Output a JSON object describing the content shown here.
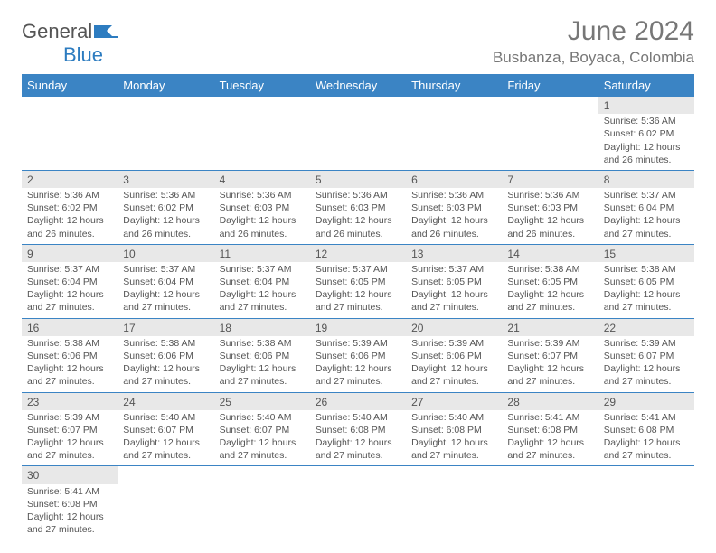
{
  "brand": {
    "part1": "General",
    "part2": "Blue"
  },
  "title": "June 2024",
  "location": "Busbanza, Boyaca, Colombia",
  "colors": {
    "header_bg": "#3b84c4",
    "header_text": "#ffffff",
    "daynum_bg": "#e8e8e8",
    "cell_border": "#3b84c4",
    "text": "#555555",
    "title_text": "#777777"
  },
  "day_headers": [
    "Sunday",
    "Monday",
    "Tuesday",
    "Wednesday",
    "Thursday",
    "Friday",
    "Saturday"
  ],
  "weeks": [
    [
      null,
      null,
      null,
      null,
      null,
      null,
      {
        "n": "1",
        "sr": "Sunrise: 5:36 AM",
        "ss": "Sunset: 6:02 PM",
        "d1": "Daylight: 12 hours",
        "d2": "and 26 minutes."
      }
    ],
    [
      {
        "n": "2",
        "sr": "Sunrise: 5:36 AM",
        "ss": "Sunset: 6:02 PM",
        "d1": "Daylight: 12 hours",
        "d2": "and 26 minutes."
      },
      {
        "n": "3",
        "sr": "Sunrise: 5:36 AM",
        "ss": "Sunset: 6:02 PM",
        "d1": "Daylight: 12 hours",
        "d2": "and 26 minutes."
      },
      {
        "n": "4",
        "sr": "Sunrise: 5:36 AM",
        "ss": "Sunset: 6:03 PM",
        "d1": "Daylight: 12 hours",
        "d2": "and 26 minutes."
      },
      {
        "n": "5",
        "sr": "Sunrise: 5:36 AM",
        "ss": "Sunset: 6:03 PM",
        "d1": "Daylight: 12 hours",
        "d2": "and 26 minutes."
      },
      {
        "n": "6",
        "sr": "Sunrise: 5:36 AM",
        "ss": "Sunset: 6:03 PM",
        "d1": "Daylight: 12 hours",
        "d2": "and 26 minutes."
      },
      {
        "n": "7",
        "sr": "Sunrise: 5:36 AM",
        "ss": "Sunset: 6:03 PM",
        "d1": "Daylight: 12 hours",
        "d2": "and 26 minutes."
      },
      {
        "n": "8",
        "sr": "Sunrise: 5:37 AM",
        "ss": "Sunset: 6:04 PM",
        "d1": "Daylight: 12 hours",
        "d2": "and 27 minutes."
      }
    ],
    [
      {
        "n": "9",
        "sr": "Sunrise: 5:37 AM",
        "ss": "Sunset: 6:04 PM",
        "d1": "Daylight: 12 hours",
        "d2": "and 27 minutes."
      },
      {
        "n": "10",
        "sr": "Sunrise: 5:37 AM",
        "ss": "Sunset: 6:04 PM",
        "d1": "Daylight: 12 hours",
        "d2": "and 27 minutes."
      },
      {
        "n": "11",
        "sr": "Sunrise: 5:37 AM",
        "ss": "Sunset: 6:04 PM",
        "d1": "Daylight: 12 hours",
        "d2": "and 27 minutes."
      },
      {
        "n": "12",
        "sr": "Sunrise: 5:37 AM",
        "ss": "Sunset: 6:05 PM",
        "d1": "Daylight: 12 hours",
        "d2": "and 27 minutes."
      },
      {
        "n": "13",
        "sr": "Sunrise: 5:37 AM",
        "ss": "Sunset: 6:05 PM",
        "d1": "Daylight: 12 hours",
        "d2": "and 27 minutes."
      },
      {
        "n": "14",
        "sr": "Sunrise: 5:38 AM",
        "ss": "Sunset: 6:05 PM",
        "d1": "Daylight: 12 hours",
        "d2": "and 27 minutes."
      },
      {
        "n": "15",
        "sr": "Sunrise: 5:38 AM",
        "ss": "Sunset: 6:05 PM",
        "d1": "Daylight: 12 hours",
        "d2": "and 27 minutes."
      }
    ],
    [
      {
        "n": "16",
        "sr": "Sunrise: 5:38 AM",
        "ss": "Sunset: 6:06 PM",
        "d1": "Daylight: 12 hours",
        "d2": "and 27 minutes."
      },
      {
        "n": "17",
        "sr": "Sunrise: 5:38 AM",
        "ss": "Sunset: 6:06 PM",
        "d1": "Daylight: 12 hours",
        "d2": "and 27 minutes."
      },
      {
        "n": "18",
        "sr": "Sunrise: 5:38 AM",
        "ss": "Sunset: 6:06 PM",
        "d1": "Daylight: 12 hours",
        "d2": "and 27 minutes."
      },
      {
        "n": "19",
        "sr": "Sunrise: 5:39 AM",
        "ss": "Sunset: 6:06 PM",
        "d1": "Daylight: 12 hours",
        "d2": "and 27 minutes."
      },
      {
        "n": "20",
        "sr": "Sunrise: 5:39 AM",
        "ss": "Sunset: 6:06 PM",
        "d1": "Daylight: 12 hours",
        "d2": "and 27 minutes."
      },
      {
        "n": "21",
        "sr": "Sunrise: 5:39 AM",
        "ss": "Sunset: 6:07 PM",
        "d1": "Daylight: 12 hours",
        "d2": "and 27 minutes."
      },
      {
        "n": "22",
        "sr": "Sunrise: 5:39 AM",
        "ss": "Sunset: 6:07 PM",
        "d1": "Daylight: 12 hours",
        "d2": "and 27 minutes."
      }
    ],
    [
      {
        "n": "23",
        "sr": "Sunrise: 5:39 AM",
        "ss": "Sunset: 6:07 PM",
        "d1": "Daylight: 12 hours",
        "d2": "and 27 minutes."
      },
      {
        "n": "24",
        "sr": "Sunrise: 5:40 AM",
        "ss": "Sunset: 6:07 PM",
        "d1": "Daylight: 12 hours",
        "d2": "and 27 minutes."
      },
      {
        "n": "25",
        "sr": "Sunrise: 5:40 AM",
        "ss": "Sunset: 6:07 PM",
        "d1": "Daylight: 12 hours",
        "d2": "and 27 minutes."
      },
      {
        "n": "26",
        "sr": "Sunrise: 5:40 AM",
        "ss": "Sunset: 6:08 PM",
        "d1": "Daylight: 12 hours",
        "d2": "and 27 minutes."
      },
      {
        "n": "27",
        "sr": "Sunrise: 5:40 AM",
        "ss": "Sunset: 6:08 PM",
        "d1": "Daylight: 12 hours",
        "d2": "and 27 minutes."
      },
      {
        "n": "28",
        "sr": "Sunrise: 5:41 AM",
        "ss": "Sunset: 6:08 PM",
        "d1": "Daylight: 12 hours",
        "d2": "and 27 minutes."
      },
      {
        "n": "29",
        "sr": "Sunrise: 5:41 AM",
        "ss": "Sunset: 6:08 PM",
        "d1": "Daylight: 12 hours",
        "d2": "and 27 minutes."
      }
    ],
    [
      {
        "n": "30",
        "sr": "Sunrise: 5:41 AM",
        "ss": "Sunset: 6:08 PM",
        "d1": "Daylight: 12 hours",
        "d2": "and 27 minutes."
      },
      null,
      null,
      null,
      null,
      null,
      null
    ]
  ]
}
